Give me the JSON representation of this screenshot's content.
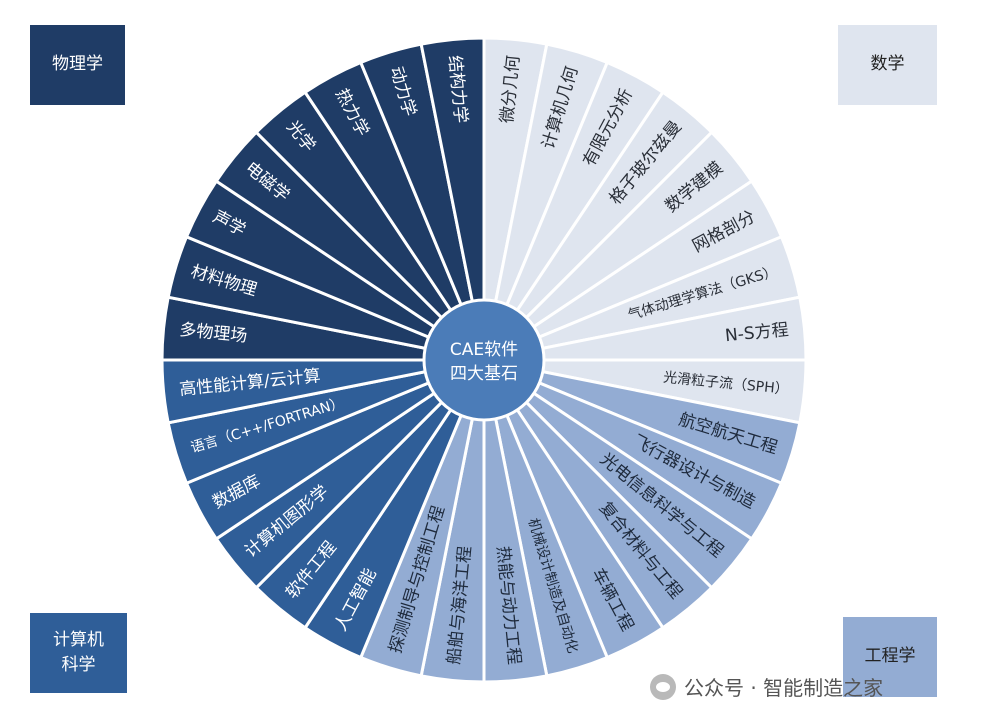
{
  "center_label": [
    "CAE软件",
    "四大基石"
  ],
  "colors": {
    "physics": "#1f3c66",
    "computer": "#2f5e98",
    "engineering": "#93acd3",
    "math": "#dfe5ef",
    "center": "#4b7cb8"
  },
  "corners": {
    "physics": "物理学",
    "math": "数学",
    "computer": "计算机\n科学",
    "engineering": "工程学"
  },
  "groups": [
    {
      "key": "math",
      "items": [
        "微分几何",
        "计算机几何",
        "有限元分析",
        "格子玻尔兹曼",
        "数学建模",
        "网格剖分",
        "气体动理学算法（GKS）",
        "N-S方程",
        "光滑粒子流（SPH）"
      ]
    },
    {
      "key": "engineering",
      "items": [
        "航空航天工程",
        "飞行器设计与制造",
        "光电信息科学与工程",
        "复合材料与工程",
        "车辆工程",
        "机械设计制造及自动化",
        "热能与动力工程",
        "船舶与海洋工程",
        "探测制导与控制工程"
      ]
    },
    {
      "key": "computer",
      "items": [
        "人工智能",
        "软件工程",
        "计算机图形学",
        "数据库",
        "语言（C++/FORTRAN）",
        "高性能计算/云计算"
      ]
    },
    {
      "key": "physics",
      "items": [
        "多物理场",
        "材料物理",
        "声学",
        "电磁学",
        "光学",
        "热力学",
        "动力学",
        "结构力学"
      ]
    }
  ],
  "watermark": "公众号 · 智能制造之家"
}
